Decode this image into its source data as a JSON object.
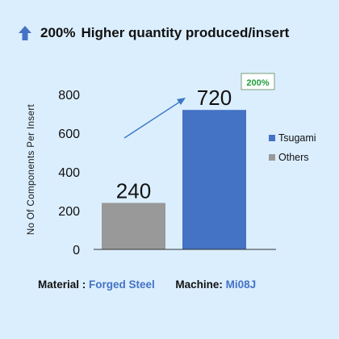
{
  "header": {
    "percent": "200%",
    "text": "Higher quantity produced/insert",
    "icon": "arrow-up-icon"
  },
  "footer": {
    "material_label": "Material :",
    "material_value": "Forged Steel",
    "machine_label": "Machine:",
    "machine_value": "Mi08J"
  },
  "chart_data": {
    "type": "bar",
    "ylabel": "No Of Components Per Insert",
    "ylim": [
      0,
      800
    ],
    "yticks": [
      0,
      200,
      400,
      600,
      800
    ],
    "series": [
      {
        "name": "Others",
        "value": 240,
        "color": "#999999"
      },
      {
        "name": "Tsugami",
        "value": 720,
        "color": "#4472c4"
      }
    ],
    "legend": [
      "Tsugami",
      "Others"
    ],
    "legend_position": "right",
    "annotation": {
      "text": "200%",
      "color": "#1f9d3a"
    },
    "grid": false
  },
  "colors": {
    "background": "#dbeefe",
    "accent": "#4472c4",
    "annotation": "#1f9d3a"
  }
}
